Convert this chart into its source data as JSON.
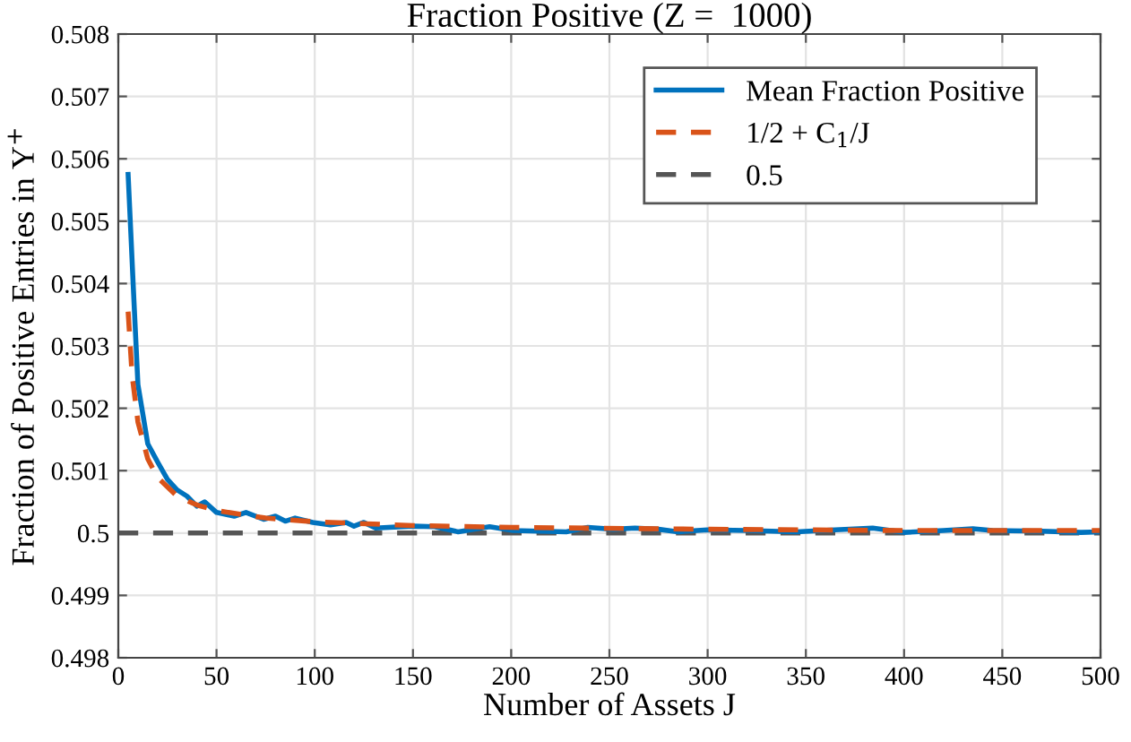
{
  "chart_data": {
    "type": "line",
    "title": "Fraction Positive (Z =  1000)",
    "xlabel": "Number of Assets J",
    "ylabel": "Fraction of Positive Entries in Y$^{+}$",
    "xlim": [
      0,
      500
    ],
    "xticks": [
      0,
      50,
      100,
      150,
      200,
      250,
      300,
      350,
      400,
      450,
      500
    ],
    "ylim": [
      0.498,
      0.508
    ],
    "yticks": [
      0.498,
      0.499,
      0.5,
      0.501,
      0.502,
      0.503,
      0.504,
      0.505,
      0.506,
      0.507,
      0.508
    ],
    "grid": true,
    "legend": "top right",
    "line_style": "solid",
    "series": [
      {
        "name": "Mean Fraction Positive",
        "color": "#0072bd",
        "x": [
          5,
          8,
          10,
          15,
          20,
          25,
          30,
          35,
          40,
          44,
          50,
          59,
          65,
          74,
          80,
          85,
          90,
          99,
          108,
          116,
          120,
          125,
          131,
          150,
          161,
          173,
          189,
          201,
          228,
          239,
          252,
          263,
          275,
          285,
          300,
          320,
          345,
          365,
          384,
          400,
          420,
          435,
          445,
          470,
          490,
          500
        ],
        "values": [
          0.50575,
          0.5037,
          0.50238,
          0.50143,
          0.50114,
          0.50086,
          0.50069,
          0.50059,
          0.50043,
          0.5005,
          0.50033,
          0.50027,
          0.50033,
          0.50022,
          0.50027,
          0.50019,
          0.50024,
          0.50017,
          0.50013,
          0.50017,
          0.50011,
          0.50017,
          0.50008,
          0.50011,
          0.5001,
          0.50002,
          0.5001,
          0.50004,
          0.50002,
          0.50009,
          0.50006,
          0.50008,
          0.50006,
          0.50002,
          0.50005,
          0.50004,
          0.50002,
          0.50005,
          0.50008,
          0.50001,
          0.50004,
          0.50007,
          0.50004,
          0.50003,
          0.50001,
          0.50002
        ]
      },
      {
        "name": "1/2 + C$_{1}$/J",
        "color": "#d95319",
        "line_style": "dashed",
        "x": [
          5,
          7,
          10,
          15,
          20,
          30,
          40,
          50,
          75,
          100,
          150,
          200,
          300,
          400,
          500
        ],
        "values": [
          0.50355,
          0.50254,
          0.50178,
          0.50119,
          0.50089,
          0.50059,
          0.50045,
          0.50036,
          0.50024,
          0.50018,
          0.50012,
          0.50009,
          0.50006,
          0.50004,
          0.50004
        ]
      }
    ],
    "ref_lines": [
      {
        "axis": "y",
        "value": 0.5,
        "label": "0.5",
        "color": "#555555",
        "line_style": "dashed"
      }
    ]
  }
}
